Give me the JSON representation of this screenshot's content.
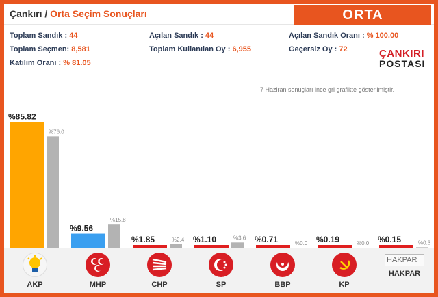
{
  "header": {
    "breadcrumb_city": "Çankırı",
    "breadcrumb_sep": "/",
    "breadcrumb_page": "Orta Seçim Sonuçları",
    "region": "ORTA"
  },
  "stats": {
    "toplam_sandik_label": "Toplam Sandık :",
    "toplam_sandik": "44",
    "toplam_secmen_label": "Toplam Seçmen:",
    "toplam_secmen": "8,581",
    "katilim_label": "Katılım Oranı :",
    "katilim": "% 81.05",
    "acilan_sandik_label": "Açılan Sandık :",
    "acilan_sandik": "44",
    "kullanilan_oy_label": "Toplam Kullanılan Oy :",
    "kullanilan_oy": "6,955",
    "acilan_orani_label": "Açılan Sandık Oranı :",
    "acilan_orani": "% 100.00",
    "gecersiz_label": "Geçersiz Oy :",
    "gecersiz": "72"
  },
  "logo": {
    "line1": "ÇANKIRI",
    "line2": "POSTASI"
  },
  "note": "7 Haziran sonuçları ince gri grafikte gösterilmiştir.",
  "colors": {
    "accent": "#e8551f",
    "prev_bar": "#b3b3b3"
  },
  "chart_data": {
    "type": "bar",
    "categories": [
      "AKP",
      "MHP",
      "CHP",
      "SP",
      "BBP",
      "KP",
      "HAKPAR"
    ],
    "series": [
      {
        "values": [
          85.82,
          9.56,
          1.85,
          1.1,
          0.71,
          0.19,
          0.15
        ],
        "labels": [
          "%85.82",
          "%9.56",
          "%1.85",
          "%1.10",
          "%0.71",
          "%0.19",
          "%0.15"
        ],
        "colors": [
          "#ffa500",
          "#3a9ff0",
          "#e01f1f",
          "#e01f1f",
          "#e01f1f",
          "#e01f1f",
          "#e01f1f"
        ]
      },
      {
        "values": [
          76.0,
          15.8,
          2.4,
          3.6,
          0.0,
          0.0,
          0.3
        ],
        "labels": [
          "%76.0",
          "%15.8",
          "%2.4",
          "%3.6",
          "%0.0",
          "%0.0",
          "%0.3"
        ]
      }
    ],
    "ylim": [
      0,
      100
    ]
  },
  "parties": [
    {
      "name": "AKP",
      "icon": "akp-lightbulb-icon",
      "color": "#f6f6f6"
    },
    {
      "name": "MHP",
      "icon": "mhp-three-crescents-icon",
      "color": "#d81e24"
    },
    {
      "name": "CHP",
      "icon": "chp-six-arrows-icon",
      "color": "#d81e24"
    },
    {
      "name": "SP",
      "icon": "sp-crescent-stars-icon",
      "color": "#d81e24"
    },
    {
      "name": "BBP",
      "icon": "bbp-crescent-icon",
      "color": "#d81e24"
    },
    {
      "name": "KP",
      "icon": "kp-hammer-sickle-icon",
      "color": "#d81e24"
    },
    {
      "name": "HAKPAR",
      "icon": "hakpar-broken-image-icon",
      "alt": "HAKPAR"
    }
  ]
}
